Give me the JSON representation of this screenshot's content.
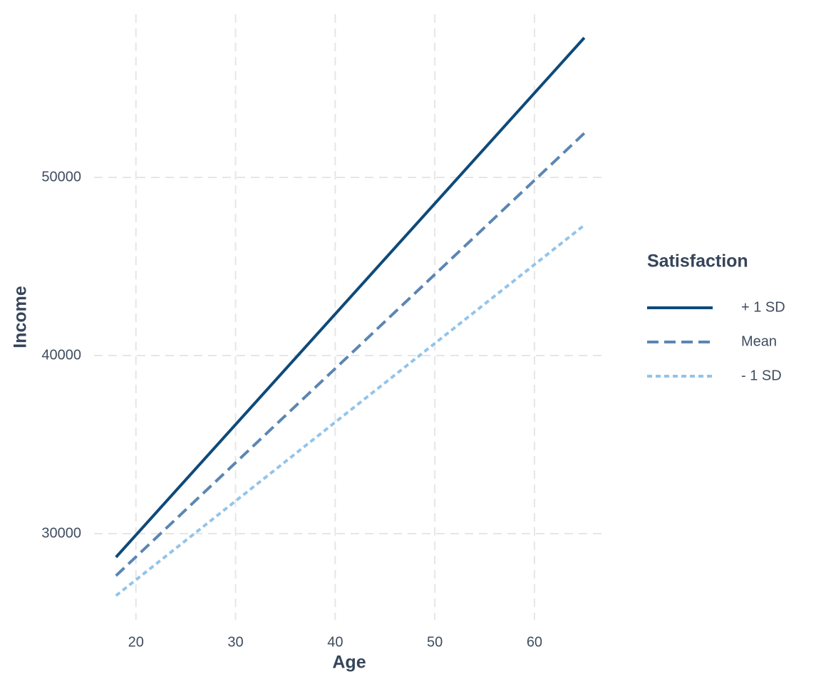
{
  "chart_data": {
    "type": "line",
    "x_label": "Age",
    "y_label": "Income",
    "legend_title": "Satisfaction",
    "x": [
      18,
      65
    ],
    "series": [
      {
        "name": "+ 1 SD",
        "color": "#0e4a7a",
        "linetype": "solid",
        "values": [
          28680,
          57840
        ]
      },
      {
        "name": "Mean",
        "color": "#5b86b3",
        "linetype": "dashed",
        "values": [
          27640,
          52480
        ]
      },
      {
        "name": "- 1 SD",
        "color": "#93c4ea",
        "linetype": "dotted",
        "values": [
          26520,
          47320
        ]
      }
    ],
    "xlim": [
      15.8,
      67.3
    ],
    "xticks": [
      20,
      30,
      40,
      50,
      60
    ],
    "ylim": [
      25160,
      59160
    ],
    "yticks": [
      30000,
      40000,
      50000
    ],
    "grid": true,
    "legend_position": "right"
  }
}
